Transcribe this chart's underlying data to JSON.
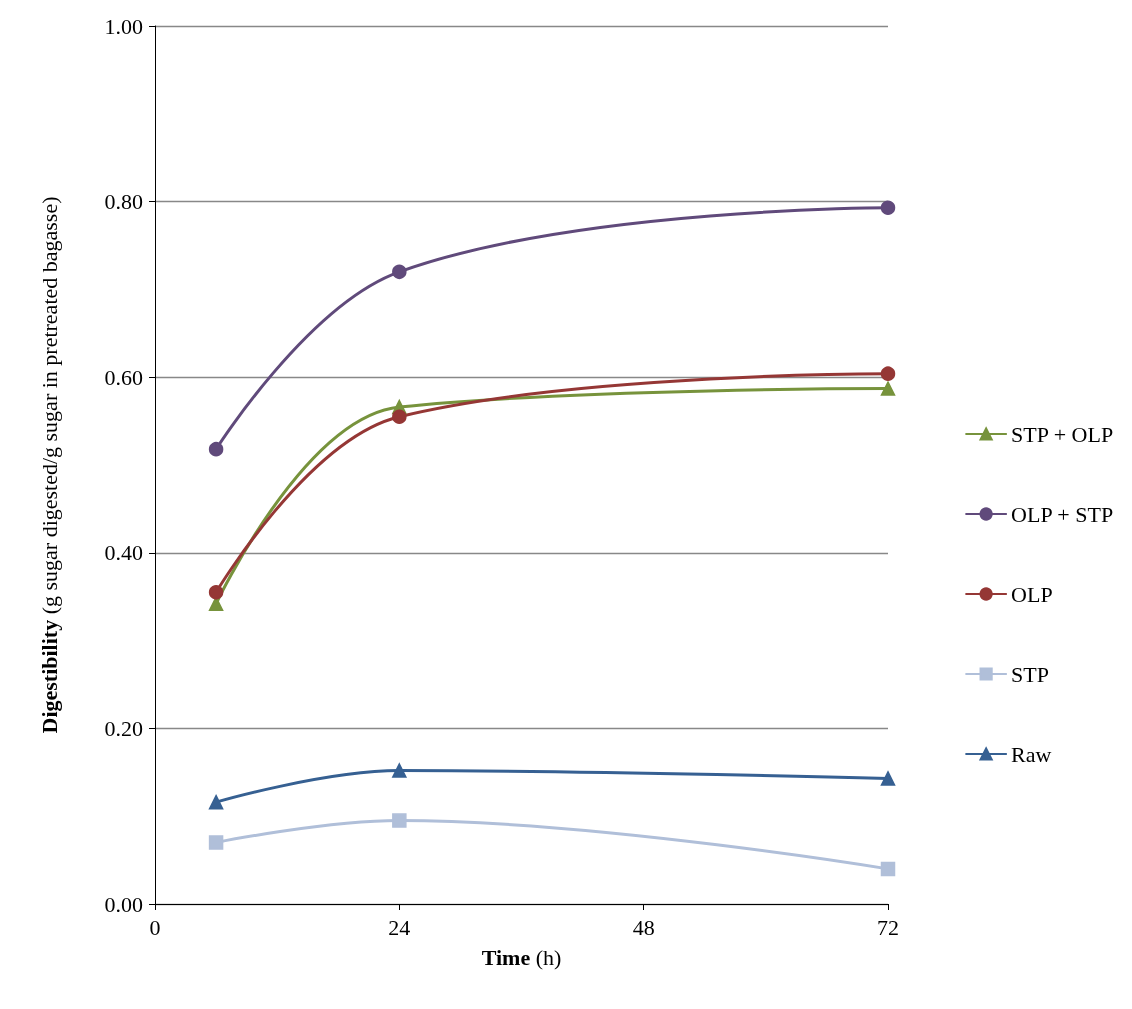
{
  "chart_data": {
    "type": "line",
    "xlabel": "Time (h)",
    "ylabel": "Digestibility (g sugar digested/g sugar in pretreated bagasse)",
    "x": [
      6,
      24,
      72
    ],
    "xlim": [
      0,
      72
    ],
    "xticks": [
      0,
      24,
      48,
      72
    ],
    "ylim": [
      0,
      1
    ],
    "yticks": [
      {
        "value": 0,
        "label": "0.00"
      },
      {
        "value": 0.2,
        "label": "0.20"
      },
      {
        "value": 0.4,
        "label": "0.40"
      },
      {
        "value": 0.6,
        "label": "0.60"
      },
      {
        "value": 0.8,
        "label": "0.80"
      },
      {
        "value": 1,
        "label": "1.00"
      }
    ],
    "grid": "y",
    "legend": "right",
    "series": [
      {
        "name": "STP + OLP",
        "color": "#77933c",
        "marker": "triangle",
        "values": [
          0.342,
          0.566,
          0.587
        ]
      },
      {
        "name": "OLP + STP",
        "color": "#604a7b",
        "marker": "circle",
        "values": [
          0.518,
          0.72,
          0.793
        ]
      },
      {
        "name": "OLP",
        "color": "#953735",
        "marker": "circle",
        "values": [
          0.355,
          0.555,
          0.604
        ]
      },
      {
        "name": "STP",
        "color": "#b0bfd9",
        "marker": "square",
        "values": [
          0.07,
          0.095,
          0.04
        ]
      },
      {
        "name": "Raw",
        "color": "#366092",
        "marker": "triangle",
        "values": [
          0.116,
          0.152,
          0.143
        ]
      }
    ]
  }
}
